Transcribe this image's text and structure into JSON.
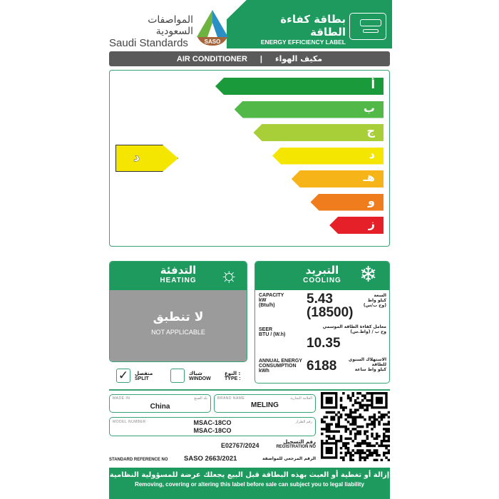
{
  "header": {
    "org_ar": "المواصفات السعودية",
    "org_en": "Saudi Standards",
    "logo_text": "SASO",
    "label_ar": "بطاقة كفاءة الطاقة",
    "label_en": "ENERGY EFFICIENCY LABEL"
  },
  "product": {
    "en": "AIR CONDITIONER",
    "sep": "|",
    "ar": "مكيف الهواء"
  },
  "rating": {
    "scale": [
      {
        "letter": "أ",
        "color": "#1a9a3a"
      },
      {
        "letter": "ب",
        "color": "#52b848"
      },
      {
        "letter": "ج",
        "color": "#a8cf38"
      },
      {
        "letter": "د",
        "color": "#f4e600"
      },
      {
        "letter": "هـ",
        "color": "#f7b418"
      },
      {
        "letter": "و",
        "color": "#ef7d1d"
      },
      {
        "letter": "ز",
        "color": "#e62028"
      }
    ],
    "current": "د"
  },
  "heating": {
    "title_ar": "التدفئة",
    "title_en": "HEATING",
    "na_ar": "لا تنطبق",
    "na_en": "NOT APPLICABLE"
  },
  "cooling": {
    "title_ar": "التبريد",
    "title_en": "COOLING",
    "capacity": {
      "l1": "CAPACITY",
      "l2": "kW",
      "l3": "(Btu/h)",
      "v1": "5.43",
      "v2": "(18500)",
      "ar1": "السعة",
      "ar2": "كيلو واط",
      "ar3": "(وح ب/س)"
    },
    "seer": {
      "l1": "SEER",
      "l2": "BTU / (W.h)",
      "v": "10.35",
      "ar1": "معامل كفاءة الطاقة الموسمي",
      "ar2": "وح ب / (واط.س)"
    },
    "annual": {
      "l1": "ANNUAL ENERGY",
      "l2": "CONSUMPTION",
      "l3": "kWh",
      "v": "6188",
      "ar1": "الاستهلاك السنوي",
      "ar2": "للطاقة",
      "ar3": "كيلو واط ساعة"
    }
  },
  "type": {
    "split_ar": "منفصل",
    "split_en": "SPLIT",
    "split_checked": true,
    "window_ar": "شباك",
    "window_en": "WINDOW",
    "label_ar": "النوع :",
    "label_en": "TYPE :"
  },
  "made_in": {
    "label": "MADE IN",
    "label_ar": "بلد الصنع",
    "value": "China"
  },
  "brand": {
    "label": "BRAND NAME",
    "label_ar": "العلامة التجارية",
    "value": "MELING"
  },
  "model": {
    "label": "MODEL NUMBER",
    "label_ar": "رقم الطراز",
    "v1": "MSAC-18CO",
    "v2": "MSAC-18CO"
  },
  "registration": {
    "value": "E02767/2024",
    "label_ar": "رقم التسجيل",
    "label_en": "REGISTRATION NO"
  },
  "standard": {
    "label_en": "STANDARD REFERENCE NO",
    "value": "SASO 2663/2021",
    "label_ar": "الرقم المرجعي للمواصفة"
  },
  "footer": {
    "ar": "إزالة أو تغطية أو العبث بهذه البطاقة قبل البيع يجعلك عرضة للمسؤولية النظامية",
    "en": "Removing, covering or altering this label before sale can subject you to legal liability"
  }
}
